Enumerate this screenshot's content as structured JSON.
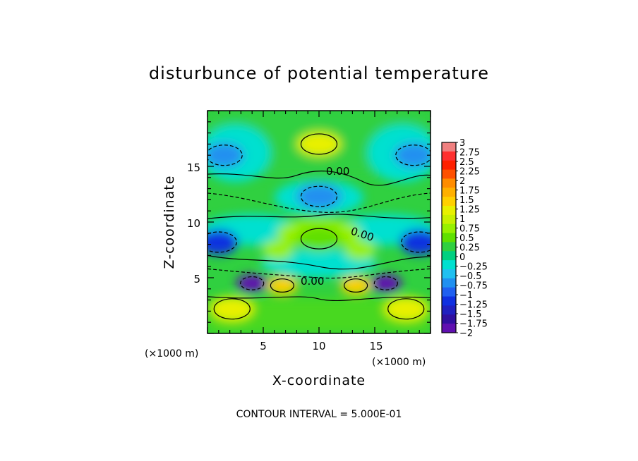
{
  "chart_data": {
    "type": "heatmap",
    "title": "disturbunce of potential temperature",
    "xlabel": "X-coordinate",
    "ylabel": "Z-coordinate",
    "xunit": "(×1000 m)",
    "zunit": "(×1000 m)",
    "xlim": [
      0,
      20
    ],
    "ylim": [
      0,
      20
    ],
    "xticks": [
      "5",
      "10",
      "15"
    ],
    "yticks": [
      "5",
      "10",
      "15"
    ],
    "contour_labels": [
      "0.00",
      "0.00",
      "0.00"
    ],
    "footer": "CONTOUR INTERVAL = 5.000E-01",
    "colorbar": {
      "levels": [
        "3",
        "2.75",
        "2.5",
        "2.25",
        "2",
        "1.75",
        "1.5",
        "1.25",
        "1",
        "0.75",
        "0.5",
        "0.25",
        "0",
        "−0.25",
        "−0.5",
        "−0.75",
        "−1",
        "−1.25",
        "−1.5",
        "−1.75",
        "−2"
      ],
      "colors": [
        "#f08080",
        "#ff3030",
        "#ff2000",
        "#ff5000",
        "#ff8c00",
        "#ffb000",
        "#ffd000",
        "#e8f000",
        "#c8f000",
        "#98f000",
        "#60e000",
        "#30d040",
        "#00d080",
        "#00e0d0",
        "#20c0f0",
        "#2090f0",
        "#2060f0",
        "#1030e0",
        "#2020c0",
        "#3010a0",
        "#6010b0"
      ]
    },
    "features": [
      {
        "type": "warm",
        "x": 10,
        "z": 17,
        "value": 1.25
      },
      {
        "type": "cold",
        "x": 10,
        "z": 12.3,
        "value": -0.75
      },
      {
        "type": "warm",
        "x": 10,
        "z": 8.5,
        "value": 0.5
      },
      {
        "type": "cold",
        "x": 1,
        "z": 8.2,
        "value": -1.25
      },
      {
        "type": "cold",
        "x": 19,
        "z": 8.2,
        "value": -1.25
      },
      {
        "type": "cold",
        "x": 4,
        "z": 4.5,
        "value": -2
      },
      {
        "type": "cold",
        "x": 16,
        "z": 4.5,
        "value": -2
      },
      {
        "type": "warm",
        "x": 6.7,
        "z": 4.3,
        "value": 1.5
      },
      {
        "type": "warm",
        "x": 13.3,
        "z": 4.3,
        "value": 1.5
      },
      {
        "type": "warm",
        "x": 2.2,
        "z": 2.2,
        "value": 1.25
      },
      {
        "type": "warm",
        "x": 17.8,
        "z": 2.2,
        "value": 1.25
      },
      {
        "type": "cold",
        "x": 1.5,
        "z": 16,
        "value": -0.75
      },
      {
        "type": "cold",
        "x": 18.5,
        "z": 16,
        "value": -0.75
      }
    ]
  }
}
